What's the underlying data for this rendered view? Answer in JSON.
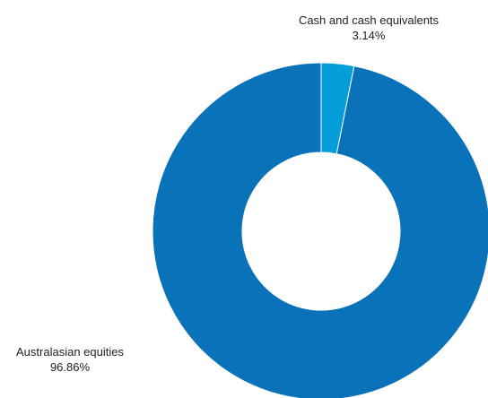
{
  "chart_data": {
    "type": "pie",
    "donut": true,
    "title": "",
    "slices": [
      {
        "label": "Cash and cash equivalents",
        "value": 3.14,
        "value_label": "3.14%",
        "color": "#069ddb"
      },
      {
        "label": "Australasian equities",
        "value": 96.86,
        "value_label": "96.86%",
        "color": "#0a72b9"
      }
    ],
    "legend": "none"
  }
}
